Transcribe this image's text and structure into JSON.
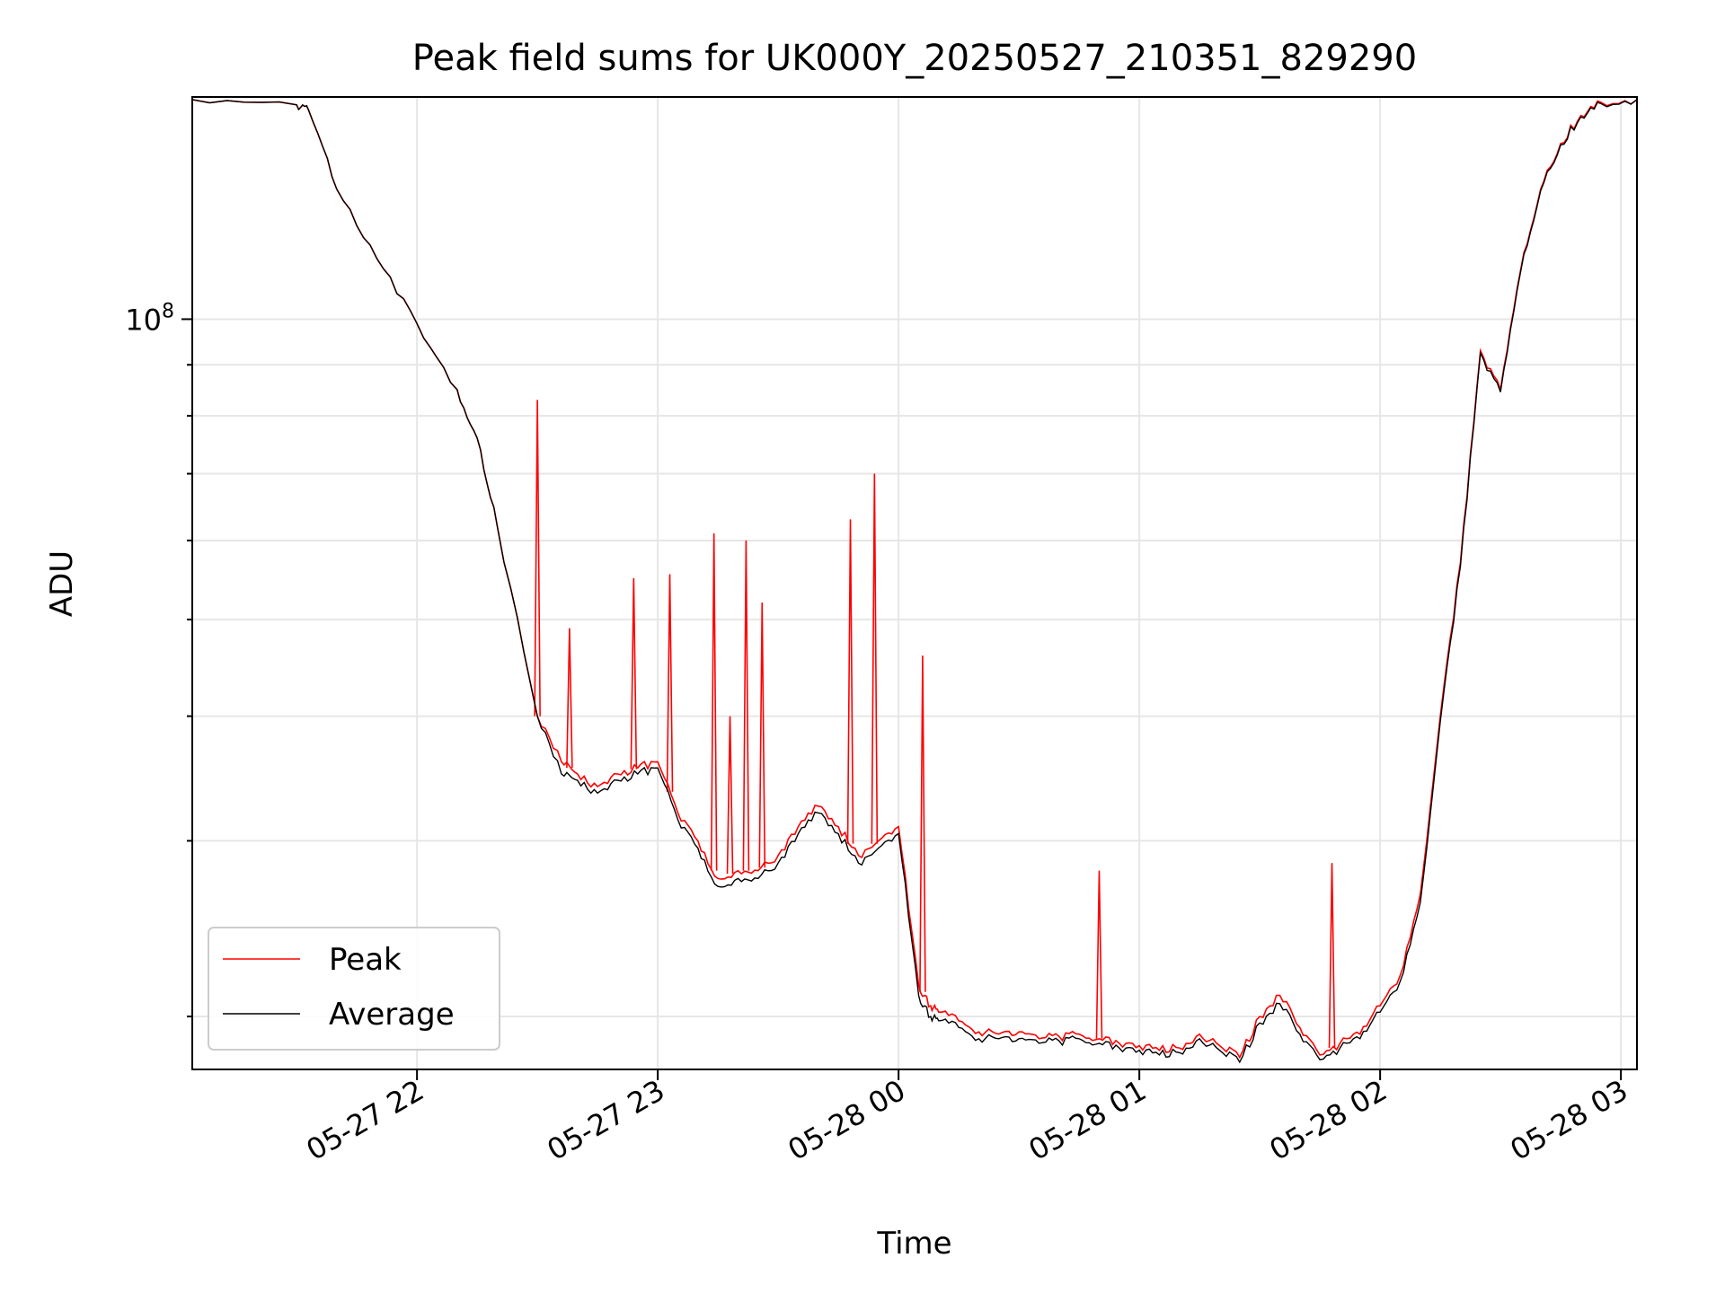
{
  "chart_data": {
    "type": "line",
    "title": "Peak field sums for UK000Y_20250527_210351_829290",
    "xlabel": "Time",
    "ylabel": "ADU",
    "x_scale": "time",
    "y_scale": "log",
    "xlim": [
      "2025-05-27 21:04",
      "2025-05-28 03:04"
    ],
    "ylim": [
      17700000,
      167000000
    ],
    "x_ticks": [
      "05-27 22",
      "05-27 23",
      "05-28 00",
      "05-28 01",
      "05-28 02",
      "05-28 03"
    ],
    "y_ticks": [
      "10^8"
    ],
    "y_major_tick": {
      "base": "10",
      "exp": "8"
    },
    "grid": true,
    "legend": {
      "position": "lower-left",
      "entries": [
        "Peak",
        "Average"
      ]
    },
    "colors": {
      "Peak": "#ff0000",
      "Average": "#000000"
    },
    "x": [
      "21:04",
      "21:30",
      "21:33",
      "21:40",
      "21:50",
      "22:00",
      "22:10",
      "22:15",
      "22:20",
      "22:30",
      "22:36",
      "22:40",
      "22:45",
      "22:50",
      "22:55",
      "23:00",
      "23:05",
      "23:10",
      "23:15",
      "23:20",
      "23:25",
      "23:30",
      "23:35",
      "23:40",
      "23:45",
      "23:50",
      "23:55",
      "00:00",
      "00:05",
      "00:08",
      "00:10",
      "00:15",
      "00:20",
      "00:25",
      "00:30",
      "00:35",
      "00:40",
      "00:45",
      "00:50",
      "00:55",
      "01:00",
      "01:05",
      "01:10",
      "01:15",
      "01:20",
      "01:25",
      "01:30",
      "01:35",
      "01:40",
      "01:45",
      "01:50",
      "01:55",
      "02:00",
      "02:05",
      "02:10",
      "02:15",
      "02:20",
      "02:25",
      "02:30",
      "02:35",
      "02:40",
      "02:45",
      "02:50",
      "02:55",
      "03:04"
    ],
    "series": [
      {
        "name": "Peak",
        "values": [
          166000000,
          164000000,
          162000000,
          135000000,
          115000000,
          99000000,
          85000000,
          76000000,
          62000000,
          40000000,
          36000000,
          35000000,
          34000000,
          35000000,
          35500000,
          36000000,
          32000000,
          30000000,
          27500000,
          28000000,
          28000000,
          29000000,
          31000000,
          32500000,
          31000000,
          29000000,
          30000000,
          31000000,
          21500000,
          20500000,
          20200000,
          19800000,
          19300000,
          19200000,
          19300000,
          19000000,
          19100000,
          19200000,
          19000000,
          18800000,
          18700000,
          18500000,
          18600000,
          19200000,
          18700000,
          18200000,
          20000000,
          21000000,
          19500000,
          18300000,
          18800000,
          19200000,
          20500000,
          22000000,
          26500000,
          40000000,
          57000000,
          93000000,
          85000000,
          112000000,
          135000000,
          150000000,
          160000000,
          165000000,
          166000000
        ]
      },
      {
        "name": "Average",
        "values": [
          166000000,
          164000000,
          162000000,
          135000000,
          115000000,
          99000000,
          85000000,
          76000000,
          62000000,
          40000000,
          35000000,
          34500000,
          33500000,
          34500000,
          35000000,
          35500000,
          31500000,
          29500000,
          27000000,
          27500000,
          27500000,
          28500000,
          30500000,
          32000000,
          30500000,
          28500000,
          29500000,
          30500000,
          21000000,
          20000000,
          19800000,
          19500000,
          19000000,
          19000000,
          19000000,
          18800000,
          18900000,
          19000000,
          18800000,
          18600000,
          18500000,
          18300000,
          18400000,
          19000000,
          18500000,
          18000000,
          19700000,
          20600000,
          19200000,
          18100000,
          18600000,
          19000000,
          20200000,
          21700000,
          26000000,
          39500000,
          56500000,
          92500000,
          84500000,
          111500000,
          134500000,
          149500000,
          159500000,
          164500000,
          166000000
        ]
      }
    ],
    "spikes": [
      {
        "series": "Peak",
        "x": "22:30",
        "y": 83000000
      },
      {
        "series": "Peak",
        "x": "22:38",
        "y": 49000000
      },
      {
        "series": "Peak",
        "x": "22:54",
        "y": 55000000
      },
      {
        "series": "Peak",
        "x": "23:03",
        "y": 55500000
      },
      {
        "series": "Peak",
        "x": "23:14",
        "y": 61000000
      },
      {
        "series": "Peak",
        "x": "23:18",
        "y": 40000000
      },
      {
        "series": "Peak",
        "x": "23:22",
        "y": 60000000
      },
      {
        "series": "Peak",
        "x": "23:26",
        "y": 52000000
      },
      {
        "series": "Peak",
        "x": "23:48",
        "y": 63000000
      },
      {
        "series": "Peak",
        "x": "23:54",
        "y": 70000000
      },
      {
        "series": "Peak",
        "x": "00:06",
        "y": 46000000
      },
      {
        "series": "Peak",
        "x": "00:50",
        "y": 28000000
      },
      {
        "series": "Peak",
        "x": "01:48",
        "y": 28500000
      }
    ]
  }
}
